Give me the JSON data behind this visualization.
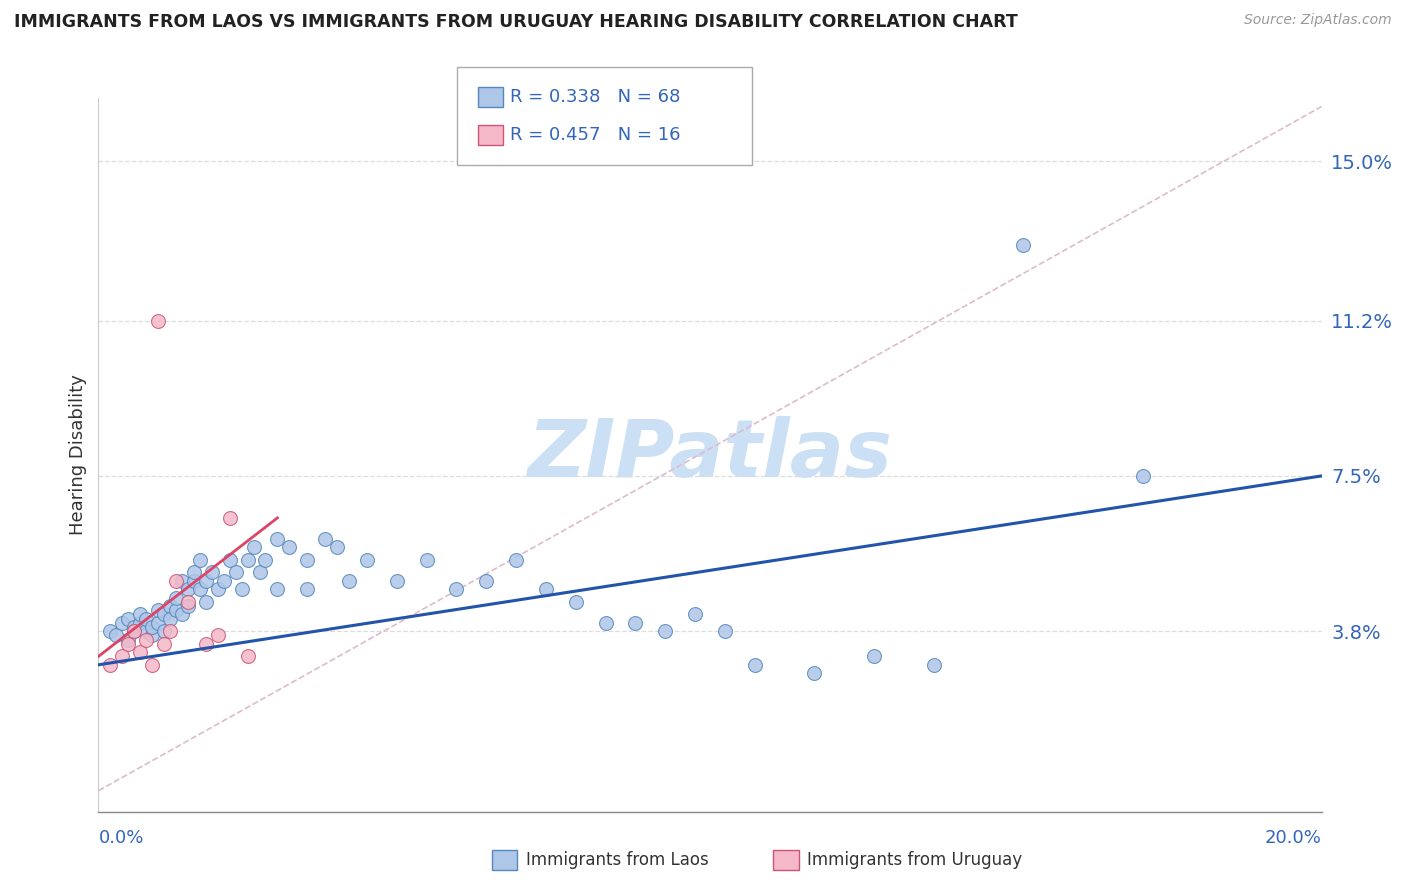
{
  "title": "IMMIGRANTS FROM LAOS VS IMMIGRANTS FROM URUGUAY HEARING DISABILITY CORRELATION CHART",
  "source": "Source: ZipAtlas.com",
  "ylabel": "Hearing Disability",
  "xlim": [
    0.0,
    0.205
  ],
  "ylim": [
    -0.005,
    0.165
  ],
  "ytick_vals": [
    0.038,
    0.075,
    0.112,
    0.15
  ],
  "ytick_labels": [
    "3.8%",
    "7.5%",
    "11.2%",
    "15.0%"
  ],
  "xtick_labels": [
    "0.0%",
    "20.0%"
  ],
  "laos_color": "#aec6e8",
  "laos_edge_color": "#5588bb",
  "uruguay_color": "#f4b8c8",
  "uruguay_edge_color": "#cc5577",
  "laos_line_color": "#2255aa",
  "uruguay_line_color": "#dd4466",
  "ref_line_color": "#ddbbcc",
  "watermark_color": "#cce0f5",
  "legend_R_laos": "R = 0.338",
  "legend_N_laos": "N = 68",
  "legend_R_uruguay": "R = 0.457",
  "legend_N_uruguay": "N = 16",
  "laos_x": [
    0.002,
    0.003,
    0.004,
    0.005,
    0.005,
    0.006,
    0.006,
    0.007,
    0.007,
    0.008,
    0.008,
    0.009,
    0.009,
    0.01,
    0.01,
    0.011,
    0.011,
    0.012,
    0.012,
    0.013,
    0.013,
    0.014,
    0.014,
    0.015,
    0.015,
    0.016,
    0.016,
    0.017,
    0.017,
    0.018,
    0.018,
    0.019,
    0.02,
    0.021,
    0.022,
    0.023,
    0.024,
    0.025,
    0.026,
    0.027,
    0.028,
    0.03,
    0.03,
    0.032,
    0.035,
    0.035,
    0.038,
    0.04,
    0.042,
    0.045,
    0.05,
    0.055,
    0.06,
    0.065,
    0.07,
    0.075,
    0.08,
    0.085,
    0.09,
    0.095,
    0.1,
    0.105,
    0.11,
    0.12,
    0.13,
    0.14,
    0.155,
    0.175
  ],
  "laos_y": [
    0.038,
    0.037,
    0.04,
    0.036,
    0.041,
    0.039,
    0.038,
    0.04,
    0.042,
    0.038,
    0.041,
    0.037,
    0.039,
    0.04,
    0.043,
    0.042,
    0.038,
    0.044,
    0.041,
    0.043,
    0.046,
    0.042,
    0.05,
    0.048,
    0.044,
    0.05,
    0.052,
    0.048,
    0.055,
    0.05,
    0.045,
    0.052,
    0.048,
    0.05,
    0.055,
    0.052,
    0.048,
    0.055,
    0.058,
    0.052,
    0.055,
    0.06,
    0.048,
    0.058,
    0.048,
    0.055,
    0.06,
    0.058,
    0.05,
    0.055,
    0.05,
    0.055,
    0.048,
    0.05,
    0.055,
    0.048,
    0.045,
    0.04,
    0.04,
    0.038,
    0.042,
    0.038,
    0.03,
    0.028,
    0.032,
    0.03,
    0.13,
    0.075
  ],
  "uruguay_x": [
    0.002,
    0.004,
    0.005,
    0.006,
    0.007,
    0.008,
    0.009,
    0.01,
    0.011,
    0.012,
    0.013,
    0.015,
    0.018,
    0.02,
    0.022,
    0.025
  ],
  "uruguay_y": [
    0.03,
    0.032,
    0.035,
    0.038,
    0.033,
    0.036,
    0.03,
    0.112,
    0.035,
    0.038,
    0.05,
    0.045,
    0.035,
    0.037,
    0.065,
    0.032
  ],
  "laos_line_x0": 0.0,
  "laos_line_y0": 0.03,
  "laos_line_x1": 0.205,
  "laos_line_y1": 0.075,
  "uru_line_x0": 0.0,
  "uru_line_y0": 0.032,
  "uru_line_x1": 0.03,
  "uru_line_y1": 0.065,
  "ref_line_x0": 0.0,
  "ref_line_y0": 0.0,
  "ref_line_x1": 0.205,
  "ref_line_y1": 0.163
}
